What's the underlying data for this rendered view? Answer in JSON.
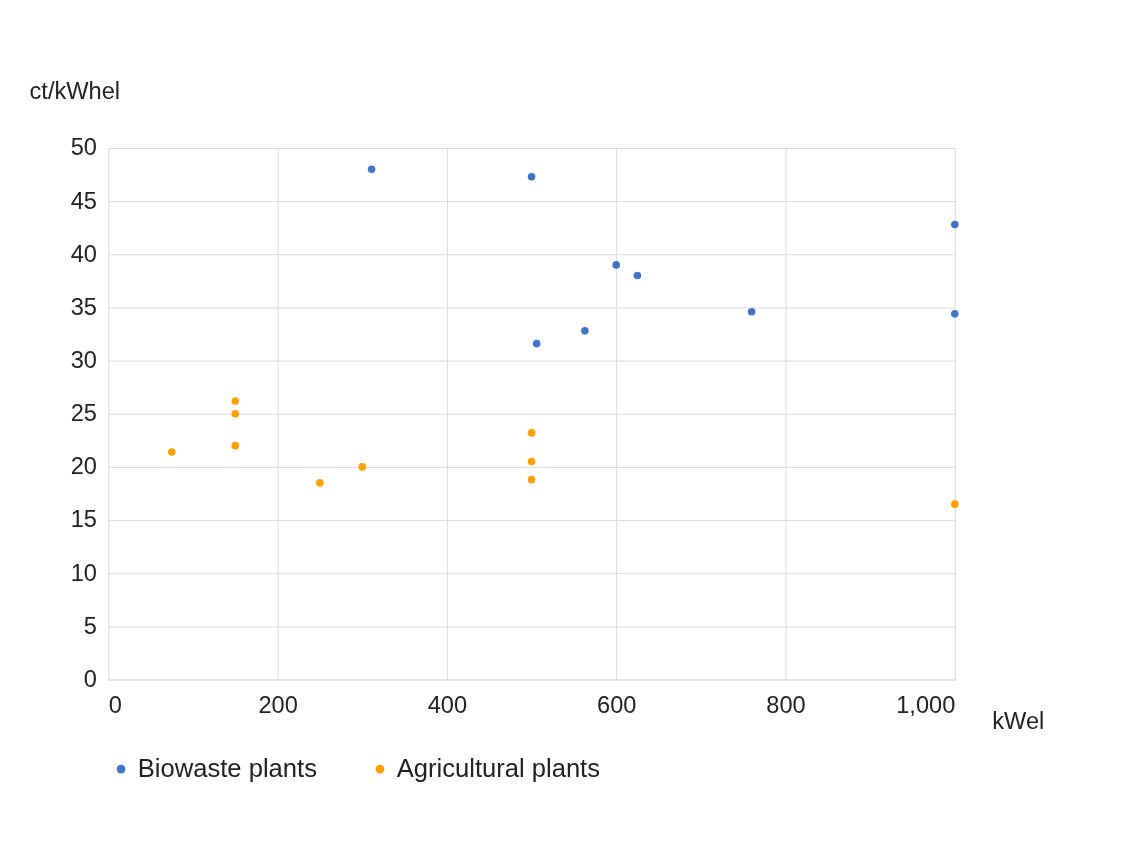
{
  "chart_data": {
    "type": "scatter",
    "ylabel": "ct/kWhel",
    "xlabel": "kWel",
    "xlim": [
      0,
      1000
    ],
    "xticks": [
      0,
      200,
      400,
      600,
      800,
      {
        "value": 1000,
        "label": "1,000"
      }
    ],
    "ylim": [
      0,
      50
    ],
    "yticks": [
      0,
      5,
      10,
      15,
      20,
      25,
      30,
      35,
      40,
      45,
      50
    ],
    "grid": true,
    "legend": "bottom",
    "marker": "circle",
    "series": [
      {
        "name": "Biowaste plants",
        "color": "#4472c4",
        "x": [
          311,
          500,
          1000,
          600,
          625,
          760,
          1000,
          563,
          506
        ],
        "values": [
          48.0,
          47.3,
          42.8,
          39.0,
          38.0,
          34.6,
          34.4,
          32.8,
          31.6
        ]
      },
      {
        "name": "Agricultural plants",
        "color": "#ffa000",
        "x": [
          75,
          150,
          150,
          150,
          250,
          300,
          500,
          500,
          500,
          1000
        ],
        "values": [
          21.4,
          26.2,
          25.0,
          22.0,
          18.5,
          20.0,
          23.2,
          20.5,
          18.8,
          16.5
        ]
      }
    ]
  }
}
